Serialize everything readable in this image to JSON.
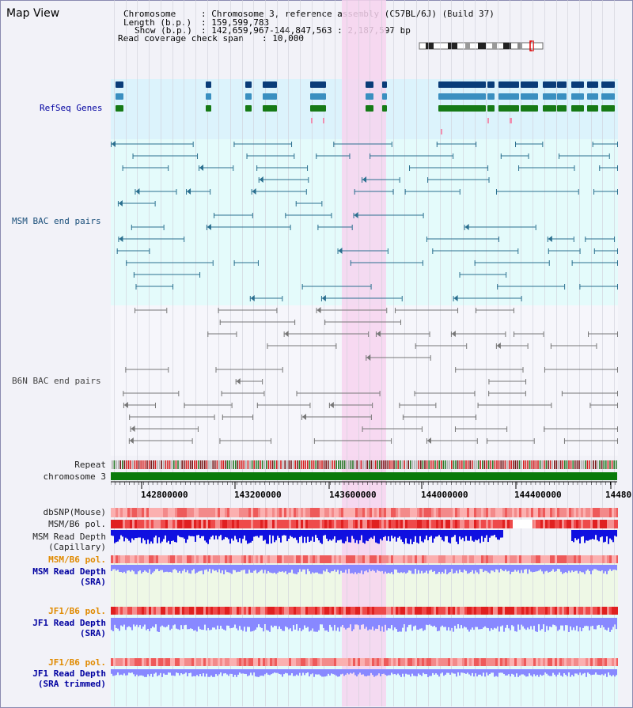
{
  "title": "Map View",
  "info": {
    "chromosome_key": "Chromosome",
    "chromosome_val": ": Chromosome 3, reference assembly (C57BL/6J) (Build 37)",
    "length_key": "Length (b.p.)",
    "length_val": ": 159,599,783",
    "show_key": "Show (b.p.)",
    "show_val": ": 142,659,967-144,847,563 : 2,187,597 bp",
    "coverage_key": "Read coverage check span",
    "coverage_val": ": 10,000"
  },
  "tracks": {
    "refseq": "RefSeq Genes",
    "msm_bac": "MSM BAC end pairs",
    "b6n_bac": "B6N BAC end pairs",
    "repeat": "Repeat",
    "chromosome": "chromosome 3",
    "dbsnp": "dbSNP(Mouse)",
    "msm_b6_pol_1": "MSM/B6 pol.",
    "msm_read_depth_cap_1": "MSM Read Depth",
    "msm_read_depth_cap_2": "(Capillary)",
    "msm_b6_pol_2": "MSM/B6 pol.",
    "msm_read_depth_sra_1": "MSM Read Depth",
    "msm_read_depth_sra_2": "(SRA)",
    "jf1_b6_pol_1": "JF1/B6 pol.",
    "jf1_read_depth_sra_1": "JF1 Read Depth",
    "jf1_read_depth_sra_2": "(SRA)",
    "jf1_b6_pol_2": "JF1/B6 pol.",
    "jf1_read_depth_trim_1": "JF1 Read Depth",
    "jf1_read_depth_trim_2": "(SRA trimmed)"
  },
  "axis": {
    "ticks": [
      "142800000",
      "143200000",
      "143600000",
      "144000000",
      "144400000",
      "14480"
    ]
  },
  "colors": {
    "refseq_bg": "#dcf3fc",
    "msm_bg": "#e4fbfb",
    "highlight": "#f7d3ee",
    "gene_dark": "#0a3c78",
    "gene_mid": "#3a8fc0",
    "gene_green": "#167a16",
    "msm_pair": "#2a6f8f",
    "b6n_pair": "#777777",
    "chromosome": "#0a7a0a",
    "snp_red": "#f06060",
    "depth_blue": "#1010e0",
    "depth_light": "#8888ff"
  }
}
